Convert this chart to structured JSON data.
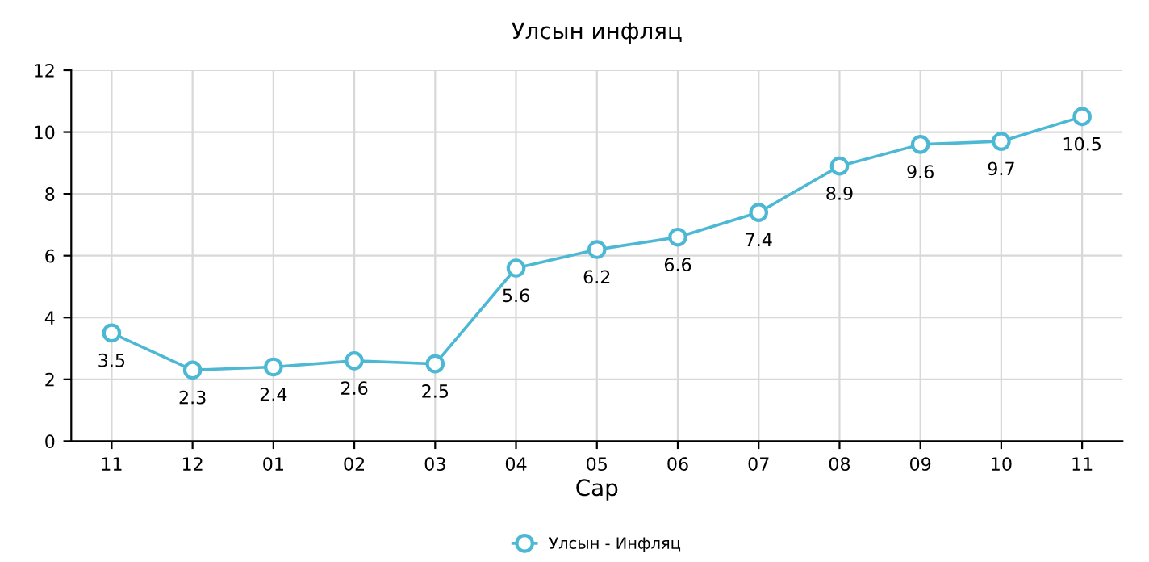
{
  "chart_data": {
    "type": "line",
    "title": "Улсын инфляц",
    "xlabel": "Сар",
    "categories": [
      "11",
      "12",
      "01",
      "02",
      "03",
      "04",
      "05",
      "06",
      "07",
      "08",
      "09",
      "10",
      "11"
    ],
    "series": [
      {
        "name": "Улсын - Инфляц",
        "color": "#4db8d4",
        "values": [
          3.5,
          2.3,
          2.4,
          2.6,
          2.5,
          5.6,
          6.2,
          6.6,
          7.4,
          8.9,
          9.6,
          9.7,
          10.5
        ]
      }
    ],
    "ylim": [
      0,
      12
    ],
    "yticks": [
      0,
      2,
      4,
      6,
      8,
      10,
      12
    ],
    "grid": true,
    "legend": "bottom",
    "marker": "circle",
    "line_style": "solid",
    "data_labels": true
  }
}
